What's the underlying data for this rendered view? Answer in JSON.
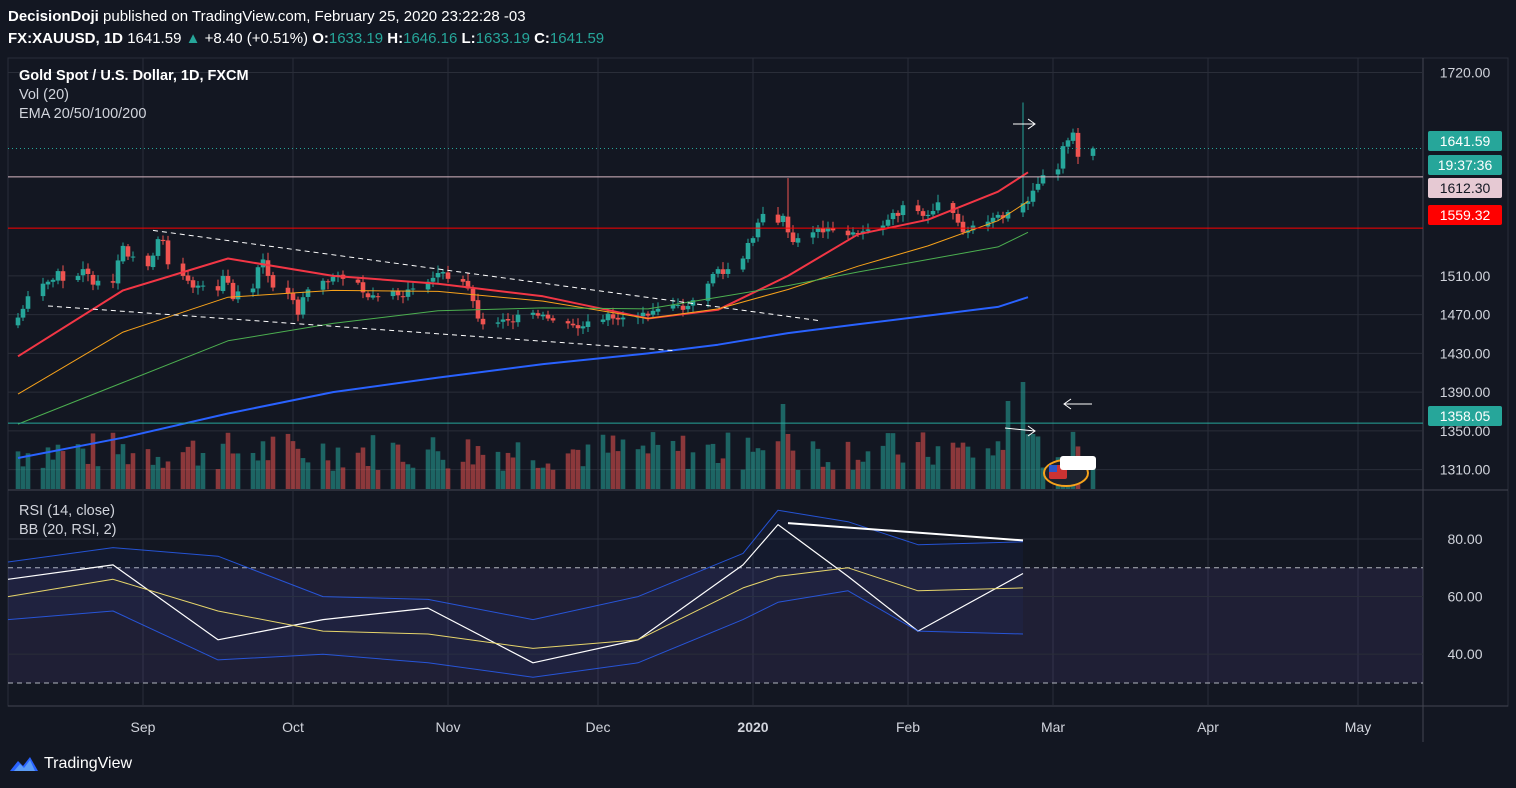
{
  "header": {
    "author": "DecisionDoji",
    "published": " published on TradingView.com, February 25, 2020 23:22:28 -03"
  },
  "ticker": {
    "symbol": "FX:XAUUSD, 1D",
    "last": "1641.59",
    "change": "+8.40 (+0.51%)",
    "open_label": "O:",
    "open": "1633.19",
    "high_label": "H:",
    "high": "1646.16",
    "low_label": "L:",
    "low": "1633.19",
    "close_label": "C:",
    "close": "1641.59"
  },
  "legend_main": {
    "title": "Gold Spot / U.S. Dollar, 1D, FXCM",
    "vol": "Vol (20)",
    "ema": "EMA 20/50/100/200"
  },
  "legend_rsi": {
    "rsi": "RSI (14, close)",
    "bb": "BB (20, RSI, 2)"
  },
  "price_tags": {
    "last": "1641.59",
    "countdown": "19:37:36",
    "resistance": "1612.30",
    "support": "1559.32",
    "low_line": "1358.05"
  },
  "footer": {
    "brand": "TradingView"
  },
  "colors": {
    "background": "#131722",
    "up": "#26a69a",
    "down": "#ef5350",
    "ema20": "#f23645",
    "ema50": "#f7a21b",
    "ema100": "#4caf50",
    "ema200": "#2962ff",
    "rsi": "#ffffff",
    "rsi_basis": "#e6d56b",
    "bb_band": "#2962ff"
  },
  "icons": {
    "arrow_right": "arrow-right-icon",
    "arrow_left": "arrow-left-icon",
    "event": "us-flag-event-icon",
    "logo": "tradingview-cloud-icon"
  },
  "chart_data": [
    {
      "type": "candlestick",
      "title": "Gold Spot / U.S. Dollar, 1D, FXCM",
      "x_tick_labels": [
        "Sep",
        "Oct",
        "Nov",
        "Dec",
        "2020",
        "Feb",
        "Mar",
        "Apr",
        "May"
      ],
      "y_tick_labels": [
        "1720.00",
        "1510.00",
        "1470.00",
        "1430.00",
        "1390.00",
        "1350.00",
        "1310.00"
      ],
      "ylim": [
        1290,
        1735
      ],
      "x_range": [
        "2019-08-05",
        "2020-05-14"
      ],
      "close": [
        1467,
        1476,
        1489,
        1502,
        1504,
        1506,
        1515,
        1505,
        1510,
        1517,
        1512,
        1501,
        1505,
        1503,
        1526,
        1541,
        1530,
        1530,
        1520,
        1531,
        1548,
        1546,
        1522,
        1510,
        1505,
        1498,
        1500,
        1500,
        1495,
        1510,
        1503,
        1486,
        1494,
        1497,
        1519,
        1527,
        1510,
        1498,
        1492,
        1485,
        1470,
        1488,
        1496,
        1505,
        1504,
        1509,
        1511,
        1507,
        1503,
        1493,
        1488,
        1490,
        1489,
        1495,
        1490,
        1488,
        1496,
        1497,
        1504,
        1508,
        1513,
        1514,
        1507,
        1504,
        1497,
        1484,
        1466,
        1460,
        1462,
        1465,
        1464,
        1463,
        1470,
        1472,
        1469,
        1470,
        1466,
        1464,
        1461,
        1459,
        1456,
        1458,
        1463,
        1465,
        1471,
        1466,
        1465,
        1467,
        1468,
        1472,
        1469,
        1474,
        1476,
        1480,
        1480,
        1475,
        1479,
        1485,
        1502,
        1512,
        1517,
        1512,
        1517,
        1528,
        1544,
        1549,
        1565,
        1574,
        1565,
        1572,
        1555,
        1545,
        1549,
        1555,
        1560,
        1555,
        1560,
        1557,
        1552,
        1555,
        1554,
        1556,
        1558,
        1562,
        1568,
        1575,
        1572,
        1583,
        1577,
        1572,
        1573,
        1577,
        1586,
        1575,
        1565,
        1555,
        1557,
        1562,
        1566,
        1570,
        1573,
        1570,
        1576,
        1585,
        1587,
        1598,
        1605,
        1614,
        1620,
        1644,
        1650,
        1658,
        1633,
        1641.59
      ],
      "volume_axis": {
        "series": "Vol (20)"
      },
      "horizontal_lines": [
        {
          "price": 1641.59,
          "style": "dotted",
          "color": "#26a69a"
        },
        {
          "price": 1612.3,
          "style": "solid",
          "color": "#d9b8c4"
        },
        {
          "price": 1559.32,
          "style": "solid",
          "color": "#ff0000"
        },
        {
          "price": 1358.05,
          "style": "solid",
          "color": "#26a69a"
        }
      ],
      "trendlines": [
        {
          "from": [
            "2019-09-03",
            1557
          ],
          "to": [
            "2020-01-14",
            1464
          ],
          "style": "dashed"
        },
        {
          "from": [
            "2019-08-13",
            1479
          ],
          "to": [
            "2019-12-16",
            1433
          ],
          "style": "dashed"
        }
      ],
      "series": [
        {
          "name": "EMA 20",
          "values": [
            1427,
            1495,
            1528,
            1510,
            1502,
            1489,
            1466,
            1475,
            1510,
            1553,
            1568,
            1597,
            1617
          ]
        },
        {
          "name": "EMA 50",
          "values": [
            1388,
            1452,
            1488,
            1495,
            1494,
            1484,
            1466,
            1476,
            1496,
            1520,
            1541,
            1567,
            1587
          ]
        },
        {
          "name": "EMA 100",
          "values": [
            1357,
            1400,
            1443,
            1461,
            1474,
            1477,
            1476,
            1488,
            1500,
            1514,
            1527,
            1540,
            1555
          ]
        },
        {
          "name": "EMA 200",
          "values": [
            1322,
            1343,
            1368,
            1390,
            1405,
            1419,
            1430,
            1439,
            1451,
            1460,
            1469,
            1478,
            1488
          ]
        }
      ]
    },
    {
      "type": "line",
      "title": "RSI (14, close)",
      "y_tick_labels": [
        "80.00",
        "60.00",
        "40.00"
      ],
      "ylim": [
        22,
        97
      ],
      "bands": {
        "upper": 70,
        "lower": 30
      },
      "x": [
        "2019-08-05",
        "2019-08-26",
        "2019-09-16",
        "2019-10-07",
        "2019-10-28",
        "2019-11-18",
        "2019-12-09",
        "2019-12-30",
        "2020-01-06",
        "2020-01-20",
        "2020-02-03",
        "2020-02-24"
      ],
      "series": [
        {
          "name": "RSI",
          "values": [
            66,
            71,
            45,
            52,
            56,
            37,
            45,
            71,
            85,
            67,
            48,
            68
          ]
        },
        {
          "name": "BB basis",
          "values": [
            60,
            66,
            55,
            48,
            47,
            42,
            45,
            63,
            67,
            70,
            62,
            63
          ]
        },
        {
          "name": "BB upper",
          "values": [
            72,
            77,
            74,
            60,
            59,
            52,
            60,
            75,
            90,
            86,
            78,
            79
          ]
        },
        {
          "name": "BB lower",
          "values": [
            52,
            55,
            38,
            40,
            37,
            32,
            37,
            52,
            58,
            62,
            48,
            47
          ]
        }
      ],
      "divergence_line": {
        "from": [
          "2020-01-08",
          85.5
        ],
        "to": [
          "2020-02-24",
          79.5
        ]
      }
    }
  ]
}
